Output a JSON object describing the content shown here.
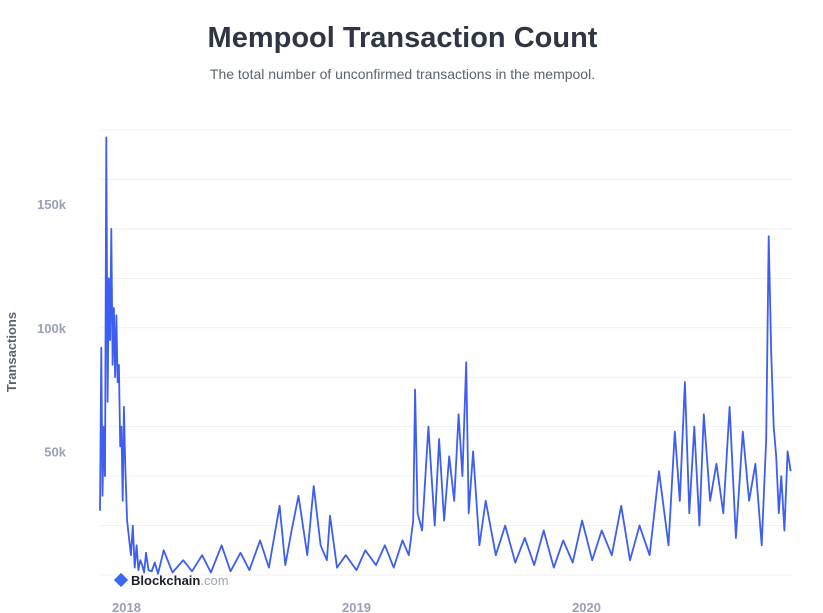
{
  "chart_data": {
    "type": "line",
    "title": "Mempool Transaction Count",
    "subtitle": "The total number of unconfirmed transactions in the mempool.",
    "ylabel": "Transactions",
    "xlabel": "",
    "ylim": [
      0,
      180000
    ],
    "xlim": [
      "2017-11-20",
      "2020-11-22"
    ],
    "yticks": [
      {
        "value": 50000,
        "label": "50k"
      },
      {
        "value": 100000,
        "label": "100k"
      },
      {
        "value": 150000,
        "label": "150k"
      }
    ],
    "xticks": [
      {
        "value": "2018-01-01",
        "label": "2018"
      },
      {
        "value": "2019-01-01",
        "label": "2019"
      },
      {
        "value": "2020-01-01",
        "label": "2020"
      }
    ],
    "grid": true,
    "line_color": "#3d5ef0",
    "series": [
      {
        "name": "",
        "x": [
          "2017-11-20",
          "2017-11-22",
          "2017-11-24",
          "2017-11-26",
          "2017-11-28",
          "2017-11-30",
          "2017-12-02",
          "2017-12-04",
          "2017-12-06",
          "2017-12-08",
          "2017-12-10",
          "2017-12-12",
          "2017-12-14",
          "2017-12-16",
          "2017-12-18",
          "2017-12-20",
          "2017-12-22",
          "2017-12-24",
          "2017-12-26",
          "2017-12-28",
          "2017-12-30",
          "2018-01-02",
          "2018-01-05",
          "2018-01-08",
          "2018-01-11",
          "2018-01-14",
          "2018-01-17",
          "2018-01-20",
          "2018-01-23",
          "2018-01-26",
          "2018-01-29",
          "2018-02-01",
          "2018-02-05",
          "2018-02-10",
          "2018-02-15",
          "2018-02-20",
          "2018-03-01",
          "2018-03-15",
          "2018-04-01",
          "2018-04-15",
          "2018-05-01",
          "2018-05-15",
          "2018-06-01",
          "2018-06-15",
          "2018-07-01",
          "2018-07-15",
          "2018-08-01",
          "2018-08-15",
          "2018-09-01",
          "2018-09-10",
          "2018-09-20",
          "2018-10-01",
          "2018-10-15",
          "2018-10-25",
          "2018-11-05",
          "2018-11-15",
          "2018-11-20",
          "2018-12-01",
          "2018-12-15",
          "2019-01-01",
          "2019-01-15",
          "2019-02-01",
          "2019-02-15",
          "2019-03-01",
          "2019-03-15",
          "2019-03-25",
          "2019-04-01",
          "2019-04-04",
          "2019-04-08",
          "2019-04-15",
          "2019-04-25",
          "2019-05-05",
          "2019-05-12",
          "2019-05-20",
          "2019-05-28",
          "2019-06-05",
          "2019-06-12",
          "2019-06-18",
          "2019-06-24",
          "2019-06-28",
          "2019-07-05",
          "2019-07-15",
          "2019-07-25",
          "2019-08-10",
          "2019-08-25",
          "2019-09-10",
          "2019-09-25",
          "2019-10-10",
          "2019-10-25",
          "2019-11-10",
          "2019-11-25",
          "2019-12-10",
          "2019-12-25",
          "2020-01-10",
          "2020-01-25",
          "2020-02-10",
          "2020-02-25",
          "2020-03-10",
          "2020-03-25",
          "2020-04-10",
          "2020-04-25",
          "2020-05-10",
          "2020-05-20",
          "2020-05-28",
          "2020-06-05",
          "2020-06-12",
          "2020-06-20",
          "2020-06-28",
          "2020-07-05",
          "2020-07-15",
          "2020-07-25",
          "2020-08-05",
          "2020-08-15",
          "2020-08-25",
          "2020-09-05",
          "2020-09-15",
          "2020-09-25",
          "2020-10-05",
          "2020-10-12",
          "2020-10-16",
          "2020-10-20",
          "2020-10-24",
          "2020-10-28",
          "2020-11-01",
          "2020-11-05",
          "2020-11-10",
          "2020-11-15",
          "2020-11-20"
        ],
        "values": [
          26000,
          92000,
          32000,
          60000,
          40000,
          177000,
          70000,
          120000,
          95000,
          140000,
          85000,
          108000,
          80000,
          105000,
          78000,
          85000,
          52000,
          60000,
          30000,
          68000,
          45000,
          22000,
          15000,
          8000,
          20000,
          3000,
          12000,
          2000,
          6000,
          4000,
          1000,
          9000,
          2000,
          1500,
          5000,
          500,
          10000,
          1000,
          6000,
          1500,
          8000,
          1000,
          12000,
          1500,
          9000,
          2000,
          14000,
          3000,
          28000,
          4000,
          18000,
          32000,
          8000,
          36000,
          12000,
          6000,
          24000,
          3000,
          8000,
          2000,
          10000,
          4000,
          12000,
          3000,
          14000,
          8000,
          22000,
          75000,
          25000,
          18000,
          60000,
          20000,
          55000,
          22000,
          48000,
          30000,
          65000,
          40000,
          86000,
          25000,
          50000,
          12000,
          30000,
          8000,
          20000,
          5000,
          15000,
          4000,
          18000,
          3000,
          14000,
          5000,
          22000,
          6000,
          18000,
          8000,
          28000,
          6000,
          20000,
          8000,
          42000,
          12000,
          58000,
          30000,
          78000,
          25000,
          60000,
          20000,
          65000,
          30000,
          45000,
          25000,
          68000,
          15000,
          58000,
          30000,
          45000,
          12000,
          55000,
          137000,
          90000,
          60000,
          48000,
          25000,
          40000,
          18000,
          50000,
          42000
        ]
      }
    ]
  }
}
